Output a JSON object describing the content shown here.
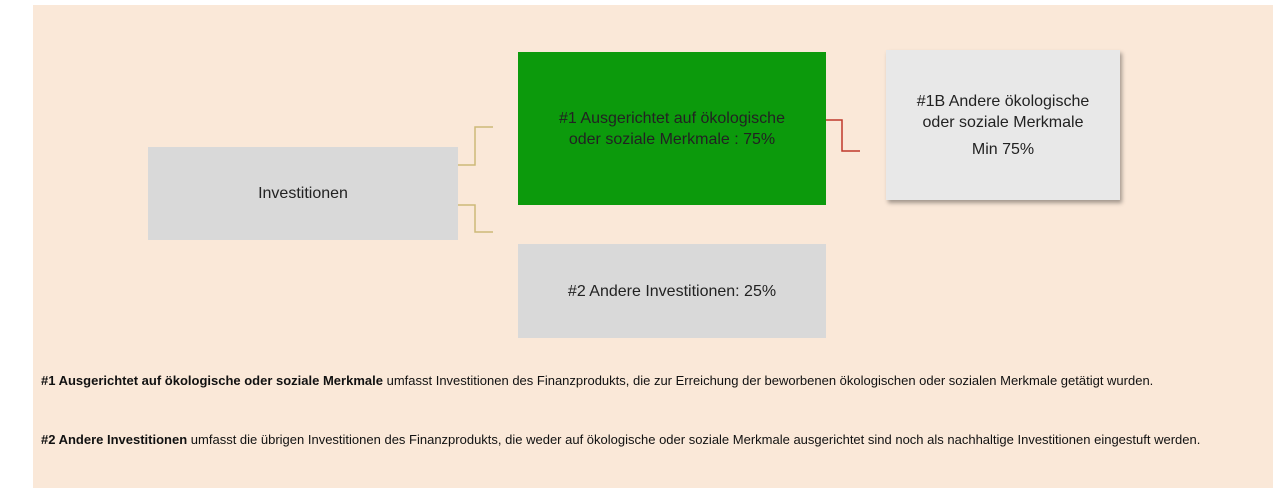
{
  "nodes": [
    {
      "label": "Investitionen"
    },
    {
      "label": "#1 Ausgerichtet auf ökologische oder soziale Merkmale : 75%"
    },
    {
      "label": "#1B Andere ökologische oder soziale Merkmale",
      "value_label": "Min 75%"
    },
    {
      "label": "#2 Andere Investitionen: 25%"
    }
  ],
  "notes": [
    {
      "term": "#1 Ausgerichtet auf ökologische oder soziale Merkmale",
      "text": "umfasst Investitionen des Finanzprodukts, die zur Erreichung der beworbenen ökologischen oder sozialen Merkmale getätigt wurden."
    },
    {
      "term": "#2 Andere Investitionen",
      "text": "umfasst die übrigen Investitionen des Finanzprodukts, die weder auf ökologische oder soziale Merkmale ausgerichtet sind noch als nachhaltige Investitionen eingestuft werden."
    }
  ]
}
